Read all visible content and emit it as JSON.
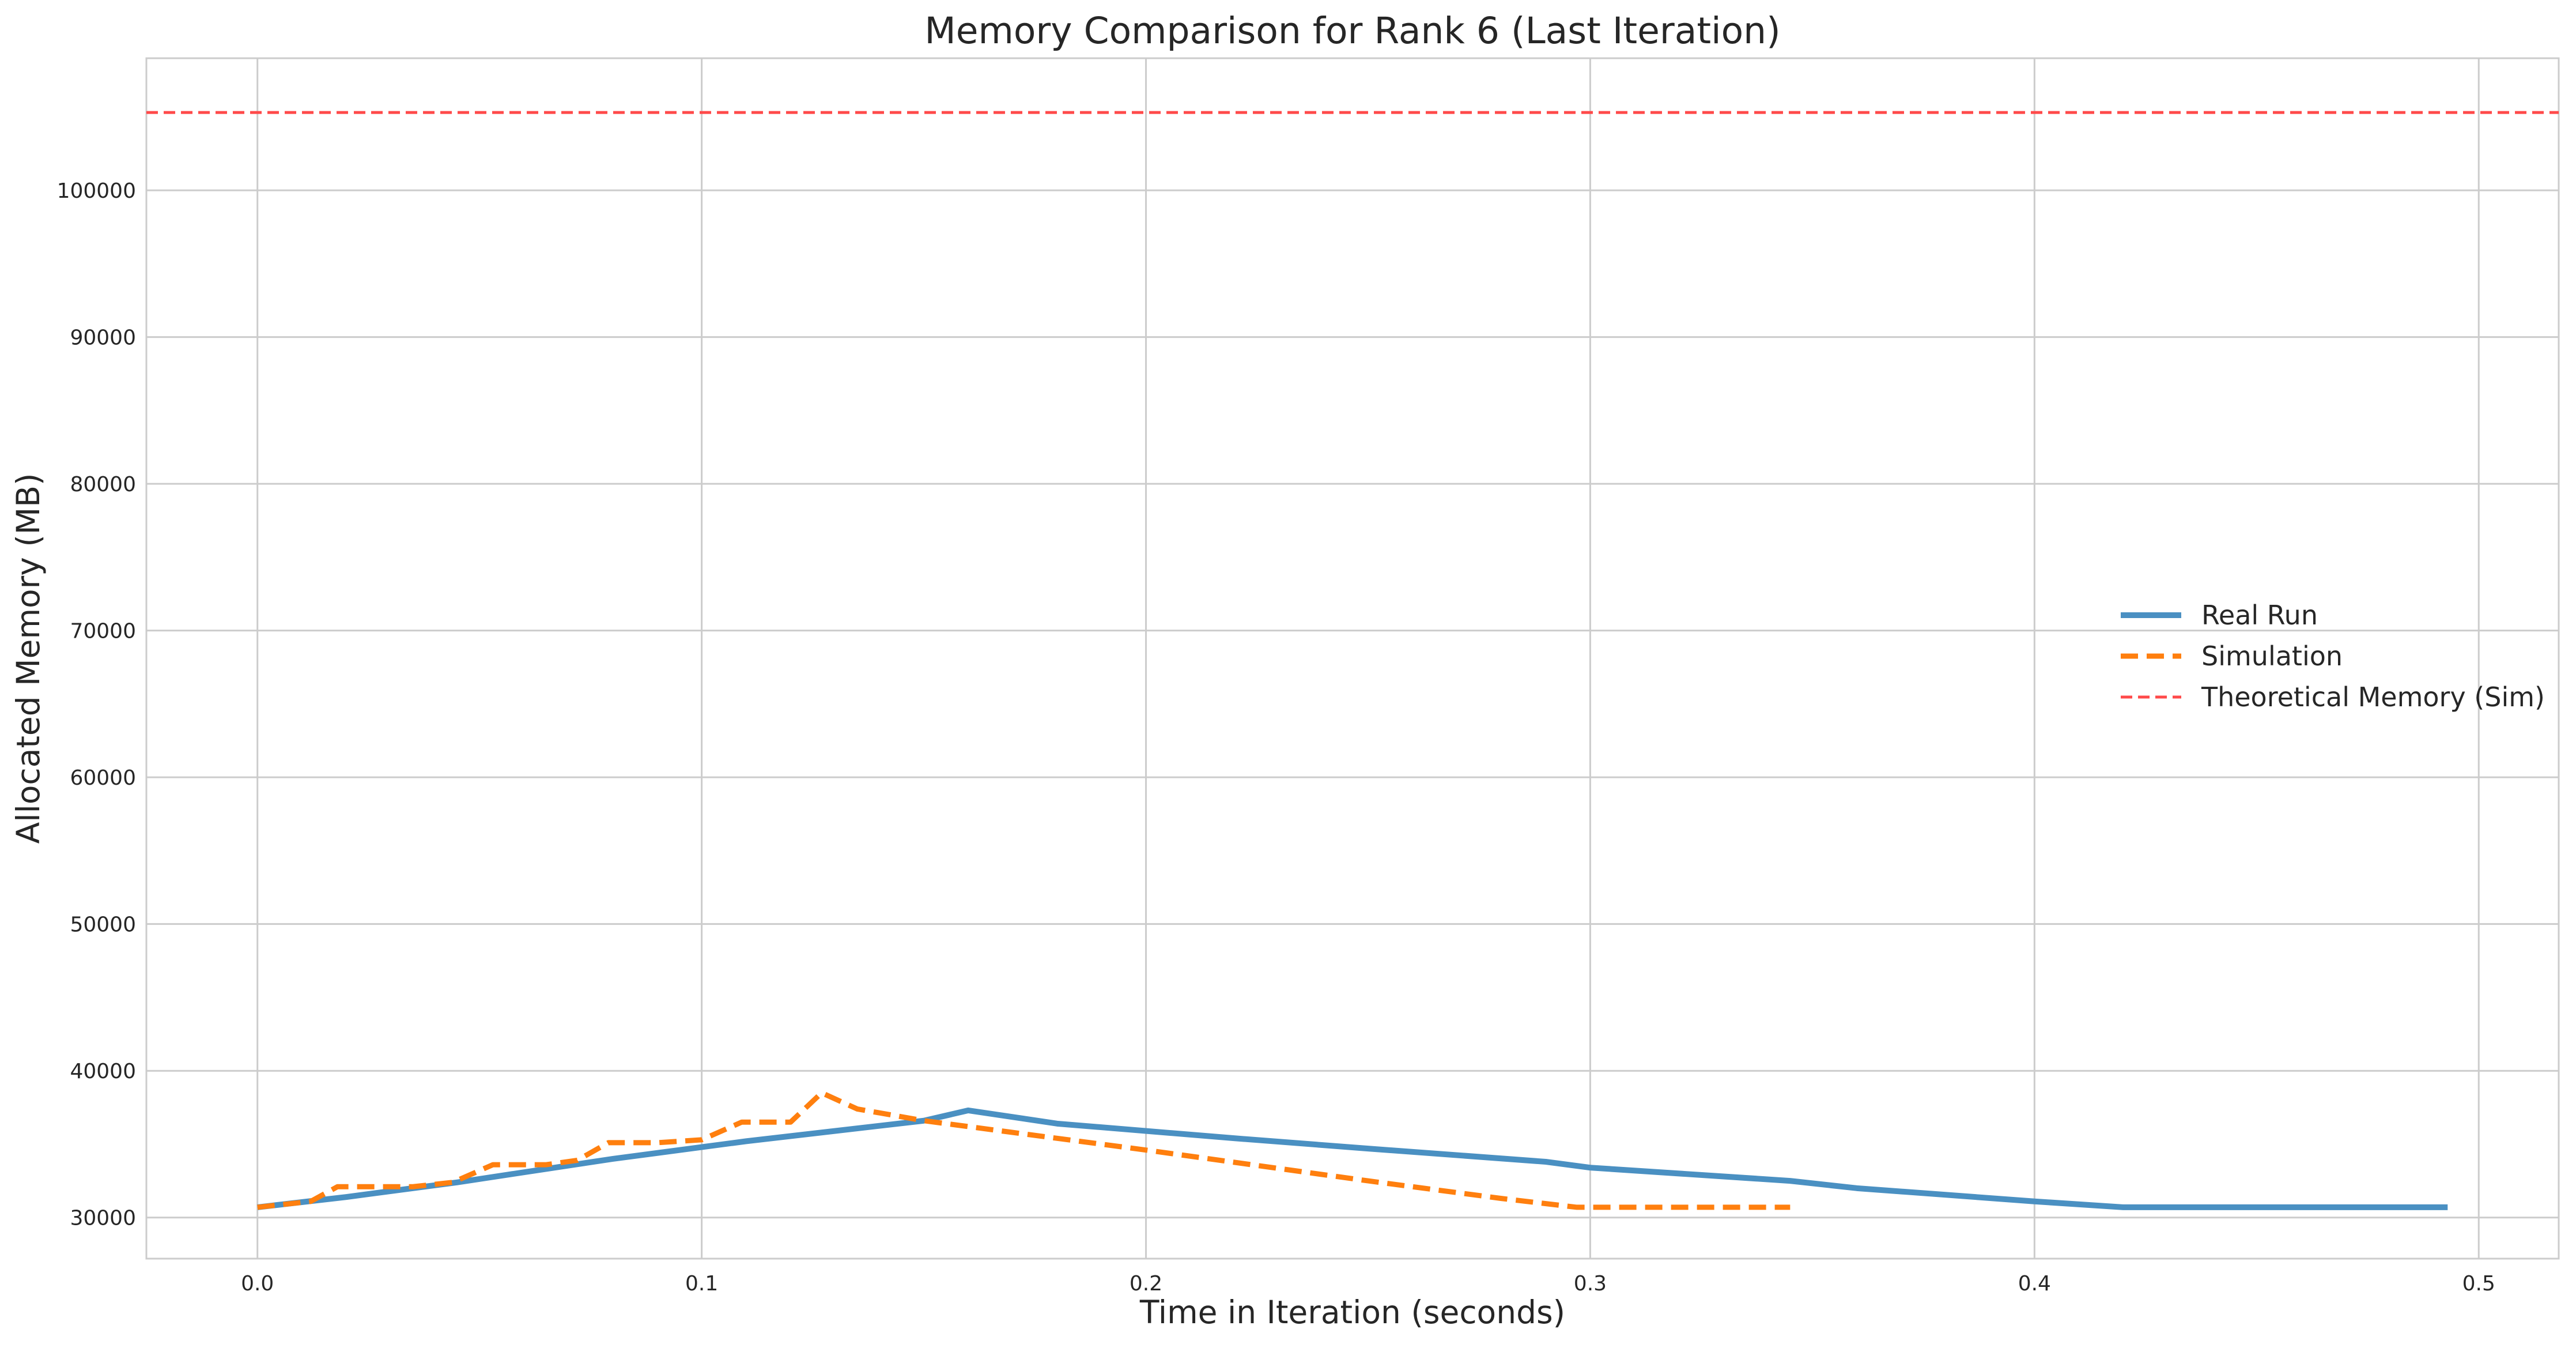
{
  "chart_data": {
    "type": "line",
    "title": "Memory Comparison for Rank 6 (Last Iteration)",
    "xlabel": "Time in Iteration (seconds)",
    "ylabel": "Allocated Memory (MB)",
    "xlim": [
      -0.025,
      0.518
    ],
    "ylim": [
      27200,
      109000
    ],
    "xticks": [
      0.0,
      0.1,
      0.2,
      0.3,
      0.4,
      0.5
    ],
    "xtick_labels": [
      "0.0",
      "0.1",
      "0.2",
      "0.3",
      "0.4",
      "0.5"
    ],
    "yticks": [
      30000,
      40000,
      50000,
      60000,
      70000,
      80000,
      90000,
      100000
    ],
    "ytick_labels": [
      "30000",
      "40000",
      "50000",
      "60000",
      "70000",
      "80000",
      "90000",
      "100000"
    ],
    "grid": true,
    "legend_position": "center-right",
    "series": [
      {
        "name": "Real Run",
        "color": "#4a90c2",
        "style": "solid",
        "x": [
          0.0,
          0.02,
          0.045,
          0.08,
          0.11,
          0.15,
          0.16,
          0.18,
          0.22,
          0.25,
          0.29,
          0.3,
          0.345,
          0.36,
          0.4,
          0.42,
          0.493
        ],
        "y": [
          30700,
          31400,
          32400,
          34000,
          35200,
          36600,
          37300,
          36400,
          35400,
          34700,
          33800,
          33400,
          32500,
          32000,
          31100,
          30700,
          30700
        ]
      },
      {
        "name": "Simulation",
        "color": "#ff7f0e",
        "style": "dashed",
        "x": [
          0.0,
          0.012,
          0.018,
          0.035,
          0.044,
          0.053,
          0.065,
          0.072,
          0.079,
          0.09,
          0.1,
          0.109,
          0.12,
          0.127,
          0.135,
          0.15,
          0.18,
          0.2,
          0.25,
          0.28,
          0.297,
          0.345
        ],
        "y": [
          30700,
          31100,
          32100,
          32100,
          32400,
          33600,
          33600,
          33900,
          35100,
          35100,
          35300,
          36500,
          36500,
          38500,
          37400,
          36600,
          35400,
          34600,
          32500,
          31300,
          30700,
          30700
        ]
      },
      {
        "name": "Theoretical Memory (Sim)",
        "color": "#ff4a4a",
        "style": "dashed-hline",
        "y_value": 105300
      }
    ]
  }
}
